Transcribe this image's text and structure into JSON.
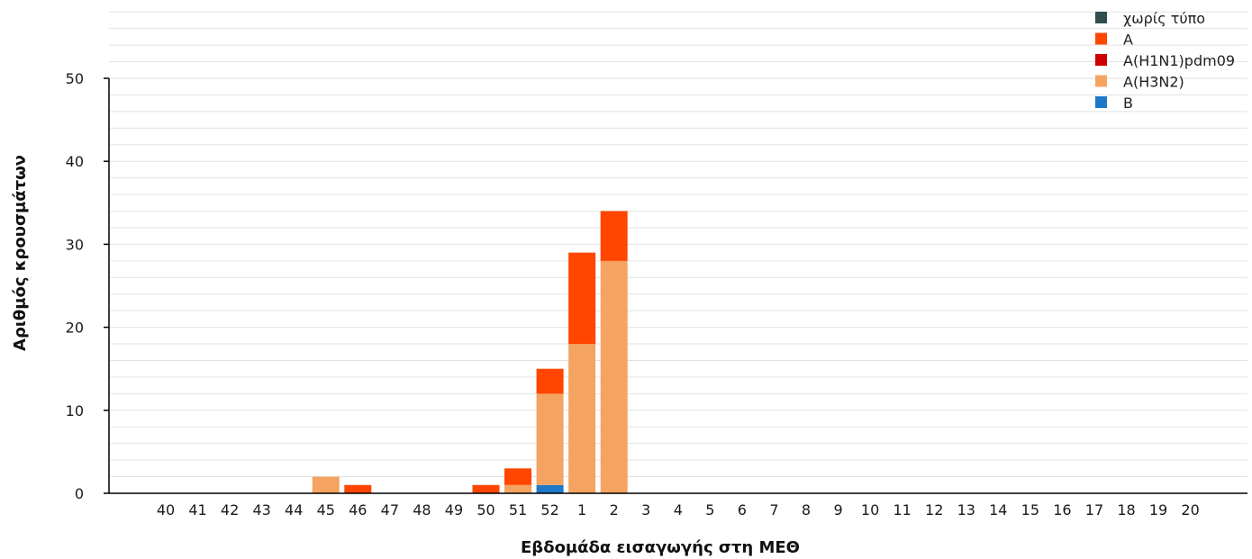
{
  "chart_data": {
    "type": "bar",
    "stacked": true,
    "title": "",
    "xlabel": "Εβδομάδα εισαγωγής στη ΜΕΘ",
    "ylabel": "Αριθμός κρουσμάτων",
    "ylim": [
      0,
      50
    ],
    "yticks": [
      0,
      10,
      20,
      30,
      40,
      50
    ],
    "grid": true,
    "legend_position": "top-right",
    "categories": [
      "40",
      "41",
      "42",
      "43",
      "44",
      "45",
      "46",
      "47",
      "48",
      "49",
      "50",
      "51",
      "52",
      "1",
      "2",
      "3",
      "4",
      "5",
      "6",
      "7",
      "8",
      "9",
      "10",
      "11",
      "12",
      "13",
      "14",
      "15",
      "16",
      "17",
      "18",
      "19",
      "20"
    ],
    "series": [
      {
        "name": "χωρίς τύπο",
        "color": "#2f4f4f",
        "values": [
          0,
          0,
          0,
          0,
          0,
          0,
          0,
          0,
          0,
          0,
          0,
          0,
          0,
          0,
          0,
          0,
          0,
          0,
          0,
          0,
          0,
          0,
          0,
          0,
          0,
          0,
          0,
          0,
          0,
          0,
          0,
          0,
          0
        ]
      },
      {
        "name": "B",
        "color": "#1f78c8",
        "values": [
          0,
          0,
          0,
          0,
          0,
          0,
          0,
          0,
          0,
          0,
          0,
          0,
          1,
          0,
          0,
          0,
          0,
          0,
          0,
          0,
          0,
          0,
          0,
          0,
          0,
          0,
          0,
          0,
          0,
          0,
          0,
          0,
          0
        ]
      },
      {
        "name": "A(H3N2)",
        "color": "#f4a460",
        "values": [
          0,
          0,
          0,
          0,
          0,
          2,
          0,
          0,
          0,
          0,
          0,
          1,
          11,
          18,
          28,
          0,
          0,
          0,
          0,
          0,
          0,
          0,
          0,
          0,
          0,
          0,
          0,
          0,
          0,
          0,
          0,
          0,
          0
        ]
      },
      {
        "name": "A(H1N1)pdm09",
        "color": "#cc0000",
        "values": [
          0,
          0,
          0,
          0,
          0,
          0,
          0,
          0,
          0,
          0,
          0,
          0,
          0,
          0,
          0,
          0,
          0,
          0,
          0,
          0,
          0,
          0,
          0,
          0,
          0,
          0,
          0,
          0,
          0,
          0,
          0,
          0,
          0
        ]
      },
      {
        "name": "A",
        "color": "#ff4500",
        "values": [
          0,
          0,
          0,
          0,
          0,
          0,
          1,
          0,
          0,
          0,
          1,
          2,
          3,
          11,
          6,
          0,
          0,
          0,
          0,
          0,
          0,
          0,
          0,
          0,
          0,
          0,
          0,
          0,
          0,
          0,
          0,
          0,
          0
        ]
      }
    ],
    "legend_order": [
      "χωρίς τύπο",
      "A",
      "A(H1N1)pdm09",
      "A(H3N2)",
      "B"
    ]
  }
}
